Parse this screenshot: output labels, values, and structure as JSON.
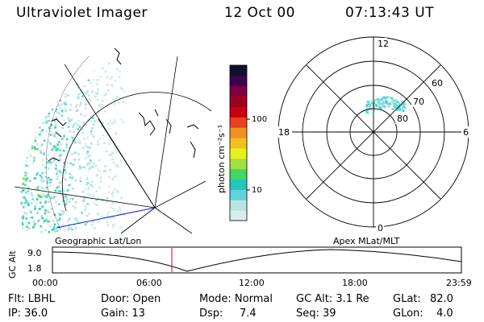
{
  "header": {
    "title": "Ultraviolet Imager",
    "date": "12 Oct 00",
    "time": "07:13:43 UT"
  },
  "left_panel": {
    "label": "Geographic Lat/Lon"
  },
  "right_panel": {
    "label": "Apex MLat/MLT",
    "mlt_labels": {
      "top": "12",
      "left": "18",
      "right": "6",
      "bottom": "0"
    },
    "lat_labels": [
      "60",
      "70",
      "80"
    ]
  },
  "colorbar": {
    "unit_label": "photon cm⁻²s⁻¹",
    "ticks": [
      "100",
      "10"
    ],
    "colors": [
      "#d8eee8",
      "#b8e4e0",
      "#60d4dc",
      "#20c8c0",
      "#40d860",
      "#a0e040",
      "#e8f020",
      "#f0c020",
      "#f09020",
      "#e84020",
      "#c80010",
      "#a00020",
      "#800040",
      "#400050",
      "#101030"
    ]
  },
  "altitude_plot": {
    "ylabel": "GC Alt",
    "yticks": [
      "9.0",
      "1.8"
    ],
    "xticks": [
      "00:00",
      "06:00",
      "12:00",
      "18:00",
      "23:59"
    ],
    "current_time_marker_color": "#e00000"
  },
  "info": {
    "flt": "Flt: LBHL",
    "door": "Door: Open",
    "mode": "Mode: Normal",
    "gc_alt": "GC Alt: 3.1 Re",
    "glat_label": "GLat:",
    "glat_value": "82.0",
    "ip": "IP: 36.0",
    "gain": "Gain: 13",
    "dsp_label": "Dsp:",
    "dsp_value": "7.4",
    "seq": "Seq: 39",
    "glon_label": "GLon:",
    "glon_value": "4.0"
  }
}
